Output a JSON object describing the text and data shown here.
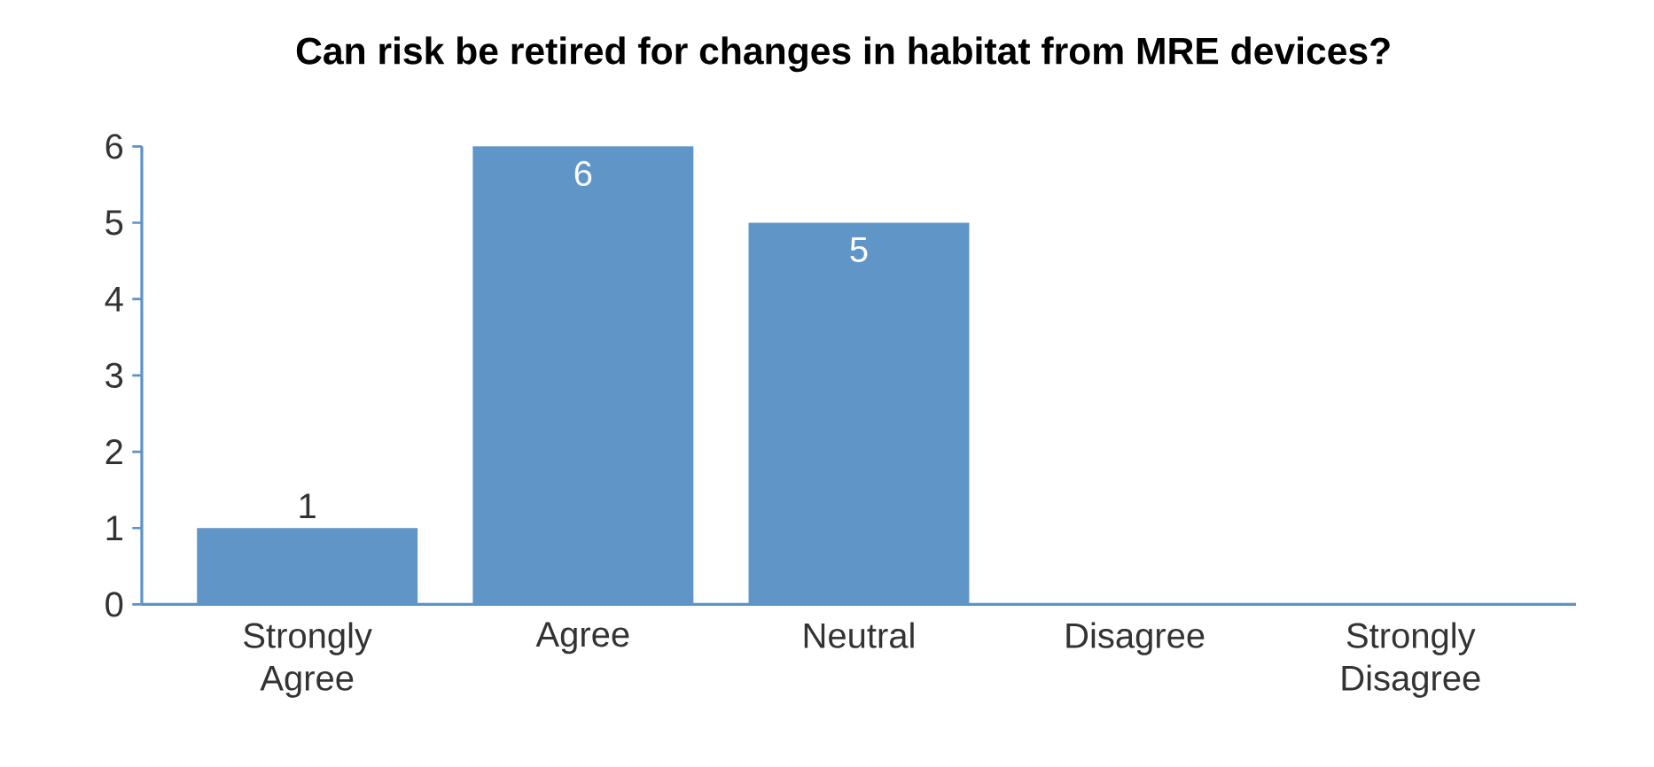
{
  "chart_data": {
    "type": "bar",
    "title": "Can risk be retired for changes in habitat from MRE devices?",
    "categories": [
      "Strongly Agree",
      "Agree",
      "Neutral",
      "Disagree",
      "Strongly Disagree"
    ],
    "values": [
      1,
      6,
      5,
      0,
      0
    ],
    "value_labels": [
      "1",
      "6",
      "5",
      null,
      null
    ],
    "color": "#6095c8",
    "ylim": [
      0,
      6
    ],
    "yticks": [
      0,
      1,
      2,
      3,
      4,
      5,
      6
    ]
  }
}
